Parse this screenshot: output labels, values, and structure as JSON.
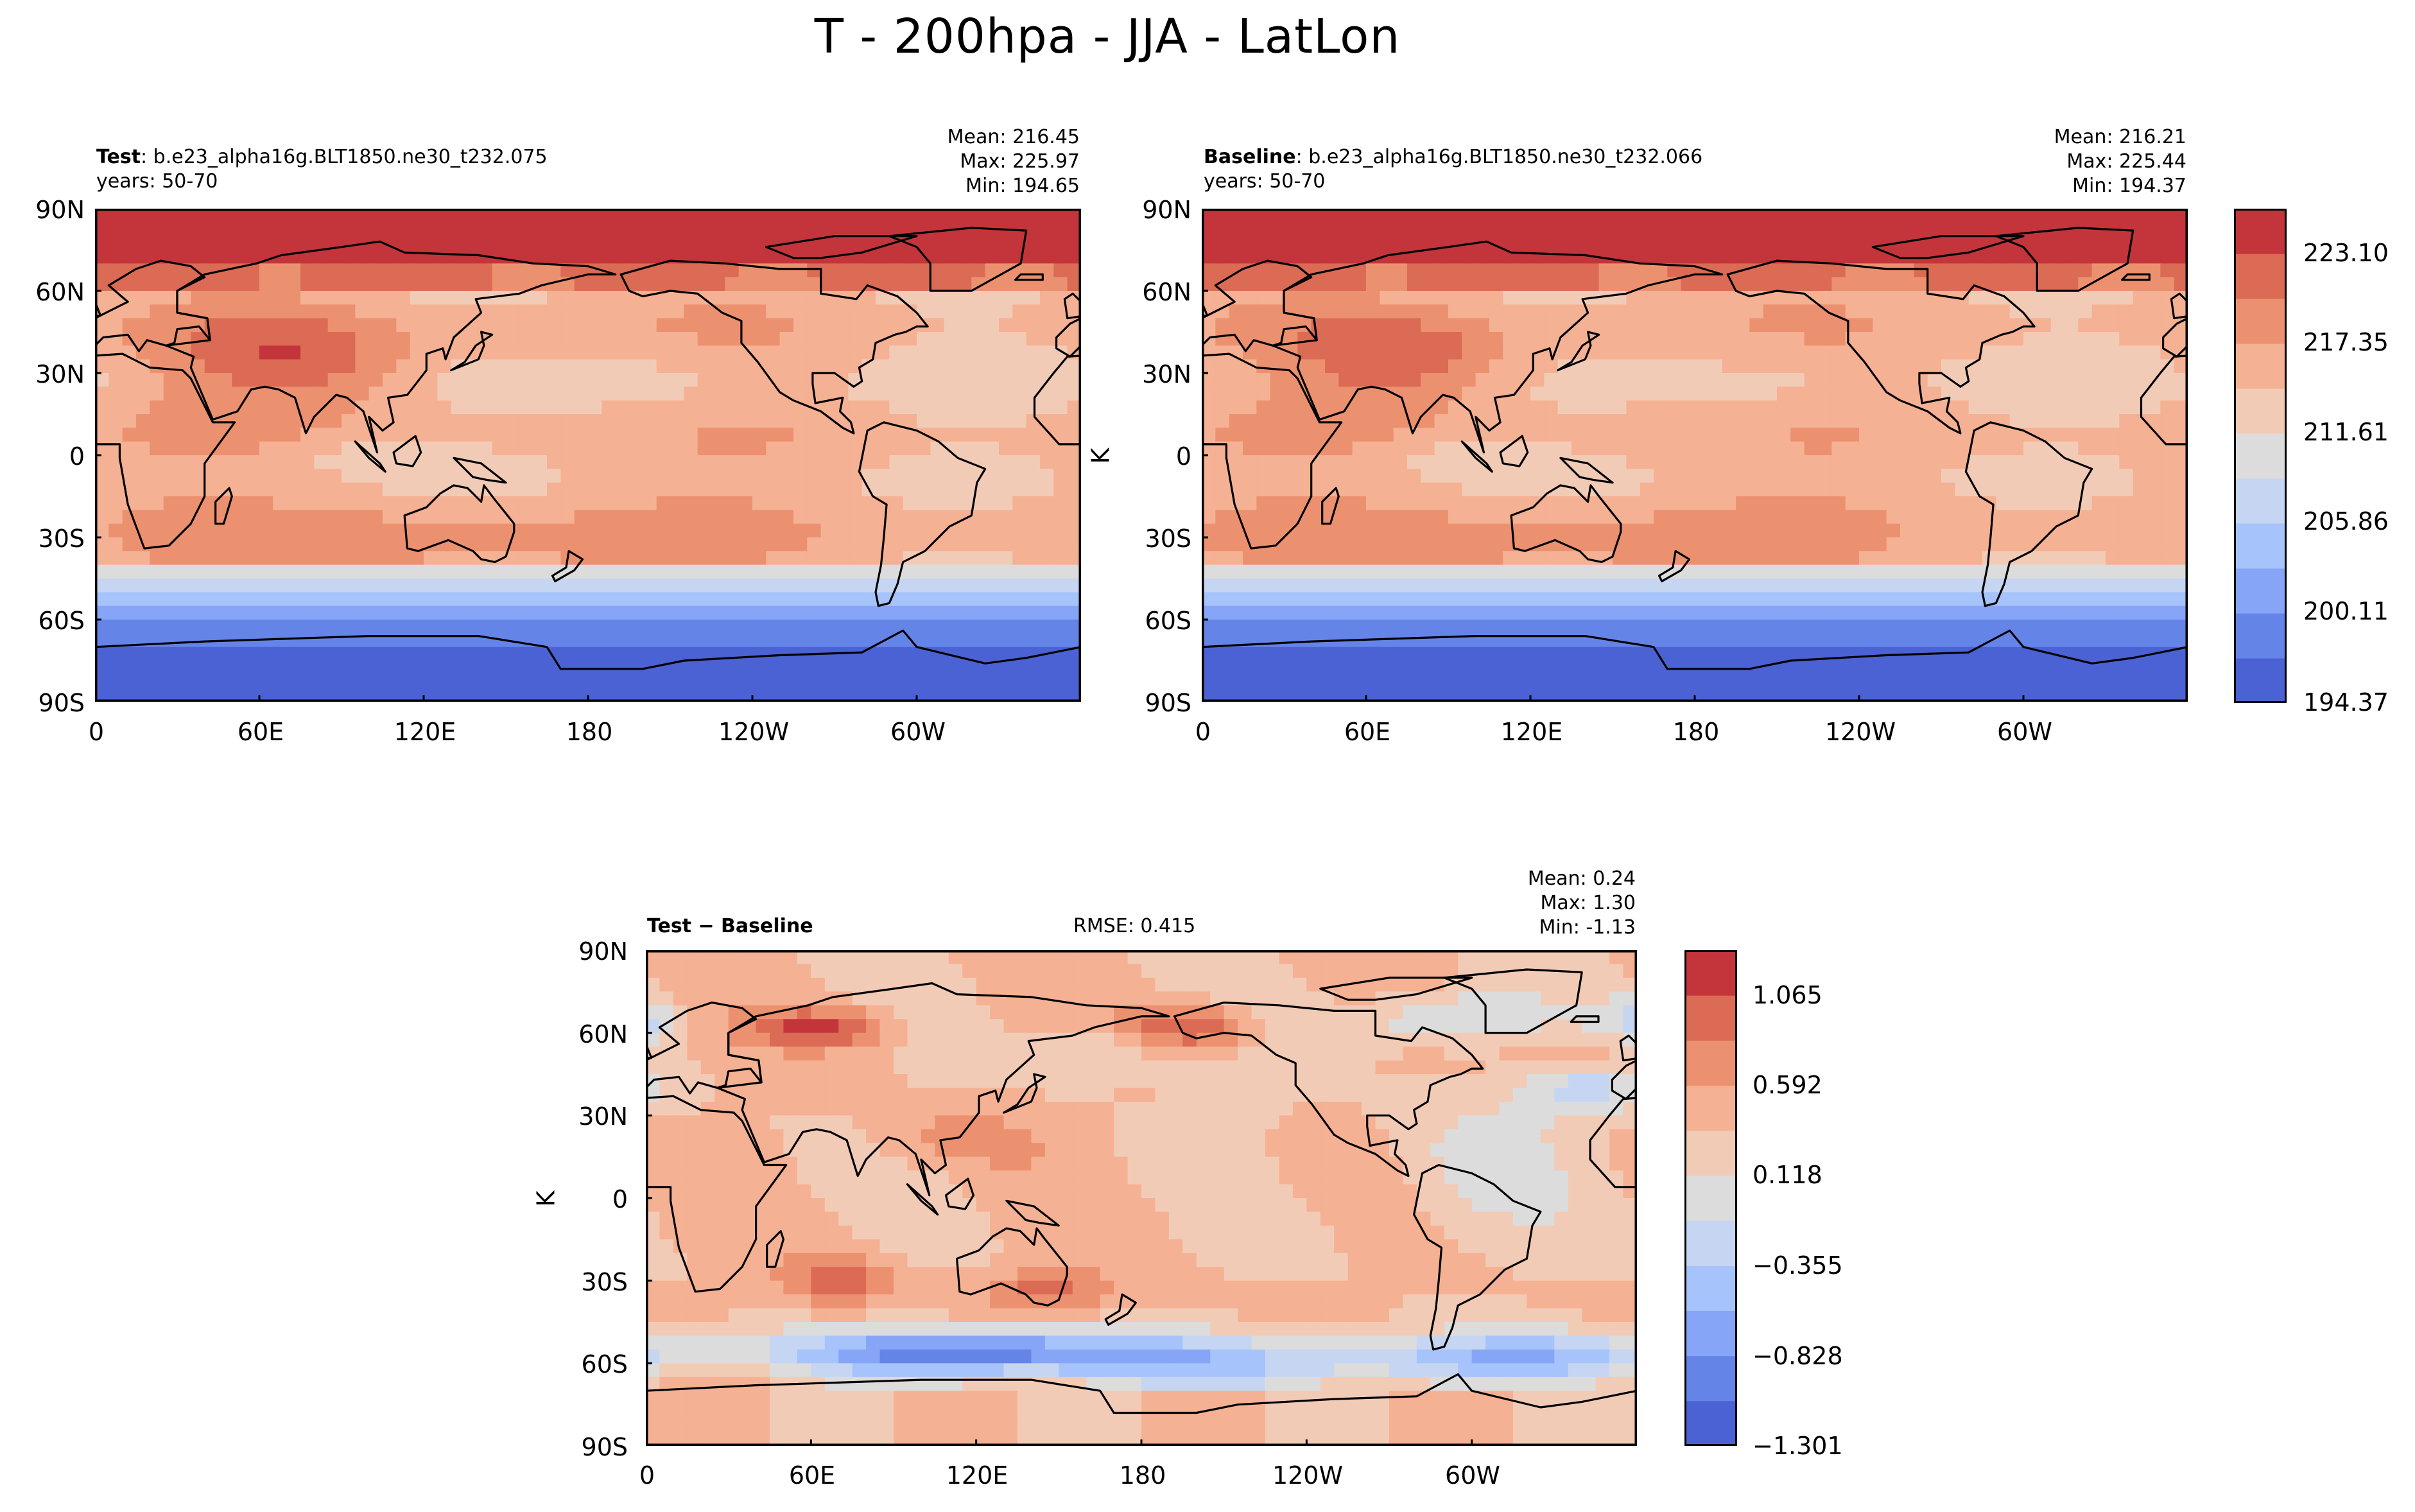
{
  "title": "T - 200hpa - JJA - LatLon",
  "panels": [
    {
      "id": "test",
      "label_bold": "Test",
      "label_rest": ": b.e23_alpha16g.BLT1850.ne30_t232.075",
      "years": "years: 50-70",
      "mean": "Mean: 216.45",
      "max": "Max: 225.97",
      "min": "Min: 194.65"
    },
    {
      "id": "baseline",
      "label_bold": "Baseline",
      "label_rest": ": b.e23_alpha16g.BLT1850.ne30_t232.066",
      "years": "years: 50-70",
      "mean": "Mean: 216.21",
      "max": "Max: 225.44",
      "min": "Min: 194.37"
    },
    {
      "id": "diff",
      "label_bold": "Test − Baseline",
      "rmse": "RMSE: 0.415",
      "mean": "Mean:  0.24",
      "max": "Max:  1.30",
      "min": "Min: -1.13"
    }
  ],
  "axes": {
    "lat_ticks": [
      "90N",
      "60N",
      "30N",
      "0",
      "30S",
      "60S",
      "90S"
    ],
    "lon_ticks": [
      "0",
      "60E",
      "120E",
      "180",
      "120W",
      "60W"
    ],
    "unit_label": "K"
  },
  "colorbars": {
    "main": {
      "ticks": [
        "223.10",
        "217.35",
        "211.61",
        "205.86",
        "200.11",
        "194.37"
      ]
    },
    "diff": {
      "ticks": [
        "1.065",
        "0.592",
        "0.118",
        "−0.355",
        "−0.828",
        "−1.301"
      ]
    }
  },
  "colors": {
    "levels": [
      "#4a62d3",
      "#6584e8",
      "#86a5f7",
      "#a7c3fb",
      "#c6d6f2",
      "#dcdcdc",
      "#f2cbb7",
      "#f5b193",
      "#ec9170",
      "#db6b54",
      "#c3353a"
    ]
  },
  "chart_data": [
    {
      "type": "heatmap",
      "title": "Test: b.e23_alpha16g.BLT1850.ne30_t232.075",
      "variable": "T",
      "level": "200hpa",
      "season": "JJA",
      "units": "K",
      "xlabel": "",
      "ylabel": "",
      "xlim": [
        0,
        360
      ],
      "ylim": [
        -90,
        90
      ],
      "x_ticks": [
        "0",
        "60E",
        "120E",
        "180",
        "120W",
        "60W"
      ],
      "y_ticks": [
        "90N",
        "60N",
        "30N",
        "0",
        "30S",
        "60S",
        "90S"
      ],
      "levels": [
        194.37,
        197.24,
        200.11,
        202.99,
        205.86,
        208.74,
        211.61,
        214.48,
        217.35,
        220.23,
        223.1,
        225.97
      ],
      "mean": 216.45,
      "max": 225.97,
      "min": 194.65
    },
    {
      "type": "heatmap",
      "title": "Baseline: b.e23_alpha16g.BLT1850.ne30_t232.066",
      "variable": "T",
      "level": "200hpa",
      "season": "JJA",
      "units": "K",
      "xlabel": "",
      "ylabel": "K",
      "xlim": [
        0,
        360
      ],
      "ylim": [
        -90,
        90
      ],
      "x_ticks": [
        "0",
        "60E",
        "120E",
        "180",
        "120W",
        "60W"
      ],
      "y_ticks": [
        "90N",
        "60N",
        "30N",
        "0",
        "30S",
        "60S",
        "90S"
      ],
      "levels": [
        194.37,
        197.24,
        200.11,
        202.99,
        205.86,
        208.74,
        211.61,
        214.48,
        217.35,
        220.23,
        223.1,
        225.97
      ],
      "colorbar_ticks": [
        223.1,
        217.35,
        211.61,
        205.86,
        200.11,
        194.37
      ],
      "mean": 216.21,
      "max": 225.44,
      "min": 194.37
    },
    {
      "type": "heatmap",
      "title": "Test − Baseline",
      "units": "K",
      "ylabel": "K",
      "xlim": [
        0,
        360
      ],
      "ylim": [
        -90,
        90
      ],
      "levels": [
        -1.301,
        -1.064,
        -0.828,
        -0.591,
        -0.355,
        -0.118,
        0.118,
        0.355,
        0.592,
        0.828,
        1.065,
        1.301
      ],
      "colorbar_ticks": [
        1.065,
        0.592,
        0.118,
        -0.355,
        -0.828,
        -1.301
      ],
      "rmse": 0.415,
      "mean": 0.24,
      "max": 1.3,
      "min": -1.13
    }
  ]
}
